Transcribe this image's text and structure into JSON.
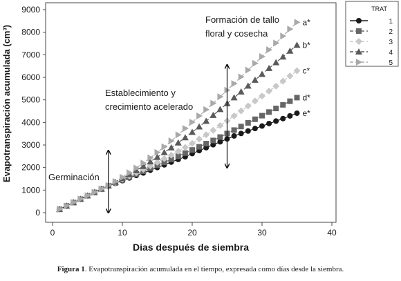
{
  "chart_data": {
    "type": "scatter",
    "xlabel": "Dias después de siembra",
    "ylabel": "Evapotranspiración acumulada (cm³)",
    "xlim": [
      0,
      40
    ],
    "ylim": [
      0,
      9000
    ],
    "xticks": [
      "0",
      "10",
      "20",
      "30",
      "40"
    ],
    "yticks": [
      "0",
      "1000",
      "2000",
      "3000",
      "4000",
      "5000",
      "6000",
      "7000",
      "8000",
      "9000"
    ],
    "grid": false,
    "legend": {
      "title": "TRAT",
      "placement": "top-right, outside plot",
      "entries": [
        "1",
        "2",
        "3",
        "4",
        "5"
      ]
    },
    "x": [
      1,
      2,
      3,
      4,
      5,
      6,
      7,
      8,
      9,
      10,
      11,
      12,
      13,
      14,
      15,
      16,
      17,
      18,
      19,
      20,
      21,
      22,
      23,
      24,
      25,
      26,
      27,
      28,
      29,
      30,
      31,
      32,
      33,
      34,
      35
    ],
    "series": [
      {
        "name": "1",
        "marker": "circle",
        "color": "#1a1a1a",
        "line": "solid",
        "end_label": "e*",
        "values": [
          150,
          300,
          450,
          600,
          750,
          900,
          1050,
          1180,
          1300,
          1420,
          1540,
          1650,
          1760,
          1880,
          2000,
          2120,
          2240,
          2360,
          2480,
          2620,
          2750,
          2880,
          3010,
          3140,
          3270,
          3400,
          3510,
          3620,
          3730,
          3840,
          3950,
          4060,
          4170,
          4290,
          4410
        ]
      },
      {
        "name": "2",
        "marker": "square",
        "color": "#666666",
        "line": "dashed",
        "end_label": "d*",
        "values": [
          150,
          300,
          450,
          600,
          750,
          900,
          1050,
          1190,
          1320,
          1450,
          1580,
          1710,
          1840,
          1970,
          2100,
          2230,
          2360,
          2500,
          2640,
          2780,
          2920,
          3060,
          3200,
          3350,
          3510,
          3660,
          3820,
          3980,
          4140,
          4300,
          4460,
          4620,
          4780,
          4940,
          5100
        ]
      },
      {
        "name": "3",
        "marker": "diamond",
        "color": "#c8c8c8",
        "line": "dashed",
        "end_label": "c*",
        "values": [
          150,
          300,
          450,
          600,
          750,
          900,
          1050,
          1200,
          1340,
          1480,
          1620,
          1770,
          1920,
          2070,
          2230,
          2390,
          2550,
          2720,
          2890,
          3070,
          3260,
          3450,
          3650,
          3860,
          4070,
          4290,
          4510,
          4730,
          4950,
          5170,
          5390,
          5610,
          5830,
          6060,
          6290
        ]
      },
      {
        "name": "4",
        "marker": "triangle-up",
        "color": "#5a5a5a",
        "line": "dashed",
        "end_label": "b*",
        "values": [
          150,
          300,
          450,
          600,
          750,
          900,
          1050,
          1200,
          1360,
          1520,
          1690,
          1870,
          2060,
          2260,
          2460,
          2670,
          2880,
          3100,
          3330,
          3570,
          3810,
          4060,
          4320,
          4580,
          4840,
          5100,
          5360,
          5620,
          5880,
          6140,
          6400,
          6660,
          6910,
          7170,
          7430
        ]
      },
      {
        "name": "5",
        "marker": "triangle-right",
        "color": "#a9a9a9",
        "line": "dashed",
        "end_label": "a*",
        "values": [
          150,
          300,
          450,
          600,
          750,
          900,
          1050,
          1200,
          1380,
          1570,
          1770,
          1980,
          2200,
          2430,
          2670,
          2920,
          3180,
          3450,
          3730,
          4010,
          4290,
          4570,
          4850,
          5140,
          5430,
          5720,
          6020,
          6320,
          6620,
          6920,
          7220,
          7520,
          7830,
          8140,
          8440
        ]
      }
    ],
    "annotations": [
      {
        "text": "Germinación",
        "arrow_x": 8,
        "arrow_y": [
          0,
          2750
        ]
      },
      {
        "text": [
          "Establecimiento y",
          "crecimiento acelerado"
        ],
        "arrow_x": null
      },
      {
        "text": [
          "Formación de tallo",
          "floral y cosecha"
        ],
        "arrow_x": 25,
        "arrow_y": [
          2000,
          6550
        ]
      }
    ]
  },
  "caption": {
    "label": "Figura 1",
    "text": ". Evapotranspiración acumulada en el tiempo, expresada como días desde la siembra."
  }
}
